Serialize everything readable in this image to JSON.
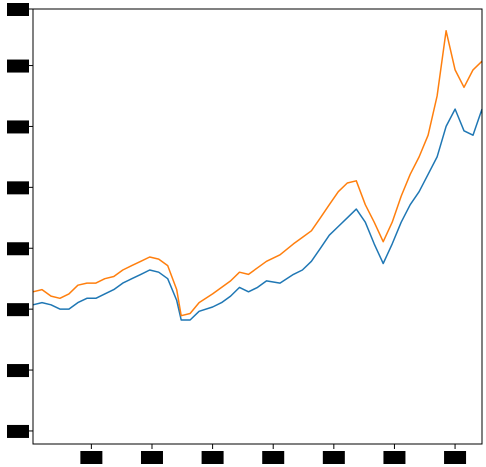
{
  "chart_data": {
    "type": "line",
    "title": "",
    "xlabel": "",
    "ylabel": "",
    "grid": false,
    "legend": "none",
    "xlim": [
      0,
      100
    ],
    "ylim": [
      0,
      100
    ],
    "x_ticks": [
      13,
      26.5,
      40,
      53.5,
      67,
      80.5,
      94
    ],
    "y_ticks": [
      3,
      17,
      31,
      45,
      59,
      73,
      87,
      100
    ],
    "series": [
      {
        "color": "#1f77b4",
        "x": [
          0,
          2,
          4,
          6,
          8,
          10,
          12,
          14,
          16,
          18,
          20,
          22,
          24,
          26,
          28,
          30,
          32,
          33,
          35,
          37,
          40,
          42,
          44,
          46,
          48,
          50,
          52,
          55,
          58,
          60,
          62,
          64,
          66,
          68,
          70,
          72,
          74,
          76,
          78,
          80,
          82,
          84,
          86,
          88,
          90,
          92,
          94,
          96,
          98,
          100
        ],
        "values": [
          32,
          32.5,
          32,
          31,
          31,
          32.5,
          33.5,
          33.5,
          34.5,
          35.5,
          37,
          38,
          39,
          40,
          39.5,
          38,
          33,
          28.5,
          28.5,
          30.5,
          31.5,
          32.5,
          34,
          36,
          35,
          36,
          37.5,
          37,
          39,
          40,
          42,
          45,
          48,
          50,
          52,
          54,
          51,
          46,
          41.5,
          46,
          51,
          55,
          58,
          62,
          66,
          73,
          77,
          72,
          71,
          77
        ]
      },
      {
        "color": "#ff7f0e",
        "x": [
          0,
          2,
          4,
          6,
          8,
          10,
          12,
          14,
          16,
          18,
          20,
          22,
          24,
          26,
          28,
          30,
          32,
          33,
          35,
          37,
          40,
          42,
          44,
          46,
          48,
          50,
          52,
          55,
          58,
          60,
          62,
          64,
          66,
          68,
          70,
          72,
          74,
          76,
          78,
          80,
          82,
          84,
          86,
          88,
          90,
          92,
          94,
          96,
          98,
          100
        ],
        "values": [
          35,
          35.5,
          34,
          33.5,
          34.5,
          36.5,
          37,
          37,
          38,
          38.5,
          40,
          41,
          42,
          43,
          42.5,
          41,
          35.5,
          29.5,
          30,
          32.5,
          34.5,
          36,
          37.5,
          39.5,
          39,
          40.5,
          42,
          43.5,
          46,
          47.5,
          49,
          52,
          55,
          58,
          60,
          60.5,
          55,
          51,
          46.5,
          51,
          57,
          62,
          66,
          71,
          80,
          95,
          86,
          82,
          86,
          88
        ]
      }
    ]
  }
}
